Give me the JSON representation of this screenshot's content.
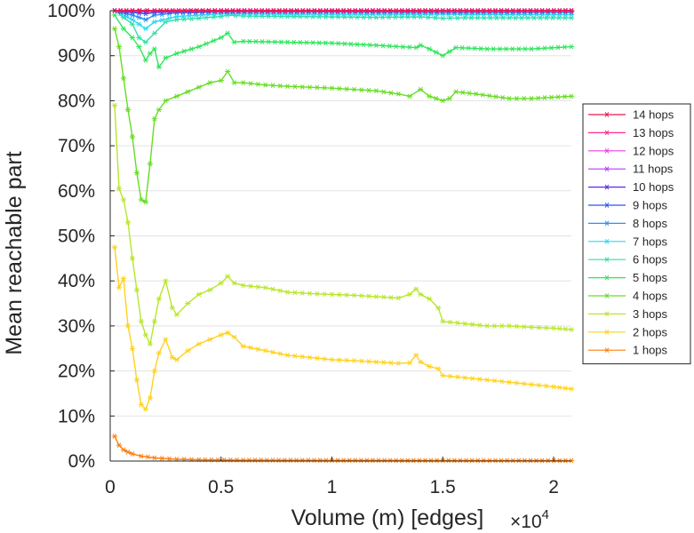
{
  "chart_data": {
    "type": "line",
    "xlabel": "Volume (m) [edges]",
    "ylabel": "Mean reachable part",
    "x_multiplier_base": "×10",
    "x_multiplier_exp": "4",
    "xlim": [
      0,
      20800
    ],
    "ylim": [
      0,
      100
    ],
    "xticks": [
      0,
      5000,
      10000,
      15000,
      20000
    ],
    "xtick_labels": [
      "0",
      "0.5",
      "1",
      "1.5",
      "2"
    ],
    "yticks": [
      0,
      10,
      20,
      30,
      40,
      50,
      60,
      70,
      80,
      90,
      100
    ],
    "ytick_labels": [
      "0%",
      "10%",
      "20%",
      "30%",
      "40%",
      "50%",
      "60%",
      "70%",
      "80%",
      "90%",
      "100%"
    ],
    "grid": "horizontal",
    "legend_position": "right",
    "marker": "asterisk",
    "series": [
      {
        "name": "14 hops",
        "color": "#e6194b",
        "x": [
          200,
          1000,
          2000,
          5000,
          10000,
          15000,
          20800
        ],
        "y": [
          100,
          100,
          100,
          100,
          100,
          100,
          100
        ]
      },
      {
        "name": "13 hops",
        "color": "#ff2a8f",
        "x": [
          200,
          1000,
          2000,
          5000,
          10000,
          15000,
          20800
        ],
        "y": [
          100,
          100,
          100,
          100,
          100,
          100,
          100
        ]
      },
      {
        "name": "12 hops",
        "color": "#f33be8",
        "x": [
          200,
          1000,
          2000,
          5000,
          10000,
          15000,
          20800
        ],
        "y": [
          100,
          100,
          100,
          100,
          100,
          100,
          100
        ]
      },
      {
        "name": "11 hops",
        "color": "#b63bff",
        "x": [
          200,
          1000,
          2000,
          5000,
          10000,
          15000,
          20800
        ],
        "y": [
          100,
          100,
          100,
          100,
          100,
          100,
          100
        ]
      },
      {
        "name": "10 hops",
        "color": "#5a2be6",
        "x": [
          200,
          1000,
          1600,
          2000,
          5000,
          10000,
          15000,
          20800
        ],
        "y": [
          100,
          99.9,
          99.8,
          99.9,
          100,
          100,
          100,
          100
        ]
      },
      {
        "name": "9 hops",
        "color": "#2b55f0",
        "x": [
          200,
          1000,
          1600,
          2000,
          3000,
          5000,
          10000,
          15000,
          20800
        ],
        "y": [
          100,
          99.6,
          99.3,
          99.6,
          99.8,
          99.9,
          99.9,
          99.9,
          99.9
        ]
      },
      {
        "name": "8 hops",
        "color": "#2f8ff0",
        "x": [
          200,
          1000,
          1600,
          2000,
          3000,
          5000,
          10000,
          15000,
          20800
        ],
        "y": [
          100,
          99.0,
          98.0,
          99.0,
          99.5,
          99.7,
          99.7,
          99.6,
          99.6
        ]
      },
      {
        "name": "7 hops",
        "color": "#2fd6f0",
        "x": [
          200,
          1000,
          1600,
          2000,
          3000,
          5000,
          10000,
          15000,
          20800
        ],
        "y": [
          100,
          98.0,
          96.0,
          97.5,
          98.7,
          99.3,
          99.2,
          99.2,
          99.1
        ]
      },
      {
        "name": "6 hops",
        "color": "#2fe0a8",
        "x": [
          200,
          600,
          1000,
          1300,
          1600,
          2000,
          2500,
          3000,
          4000,
          5000,
          5300,
          6000,
          8000,
          10000,
          12000,
          14000,
          15000,
          16000,
          18000,
          20800
        ],
        "y": [
          100,
          98.5,
          97.0,
          94.0,
          93.0,
          95.0,
          97.5,
          98.0,
          98.3,
          98.7,
          99.0,
          98.8,
          98.7,
          98.6,
          98.5,
          98.6,
          98.3,
          98.4,
          98.4,
          98.4
        ]
      },
      {
        "name": "5 hops",
        "color": "#2ee65c",
        "x": [
          200,
          600,
          1000,
          1300,
          1600,
          1800,
          2000,
          2200,
          2500,
          3000,
          4000,
          5000,
          5300,
          5600,
          6000,
          8000,
          10000,
          12000,
          13800,
          14000,
          14400,
          15000,
          15600,
          17000,
          19000,
          20800
        ],
        "y": [
          99.0,
          96.0,
          94.0,
          92.0,
          89.0,
          90.5,
          91.5,
          87.5,
          89.5,
          90.5,
          92.0,
          94.0,
          95.0,
          93.0,
          93.2,
          93.0,
          92.8,
          92.3,
          91.8,
          92.3,
          91.5,
          90.0,
          91.8,
          91.5,
          91.5,
          92.0
        ]
      },
      {
        "name": "4 hops",
        "color": "#66dd22",
        "x": [
          200,
          400,
          600,
          800,
          1000,
          1200,
          1400,
          1600,
          1800,
          2000,
          2200,
          2500,
          3000,
          3500,
          4000,
          4500,
          5000,
          5300,
          5600,
          6000,
          7000,
          8000,
          9000,
          10000,
          11000,
          12000,
          13000,
          13500,
          14000,
          14400,
          15000,
          15300,
          15600,
          16500,
          18000,
          19000,
          20800
        ],
        "y": [
          96.0,
          92.0,
          85.0,
          78.0,
          72.0,
          64.0,
          58.0,
          57.5,
          66.0,
          76.0,
          78.0,
          80.0,
          81.0,
          82.0,
          83.0,
          84.0,
          84.5,
          86.5,
          84.0,
          84.0,
          83.5,
          83.2,
          83.0,
          82.8,
          82.5,
          82.2,
          81.5,
          81.0,
          82.5,
          81.0,
          80.0,
          80.5,
          82.0,
          81.5,
          80.5,
          80.5,
          81.0
        ]
      },
      {
        "name": "3 hops",
        "color": "#b8e62b",
        "x": [
          200,
          400,
          600,
          800,
          1000,
          1200,
          1400,
          1600,
          1800,
          2000,
          2200,
          2500,
          2800,
          3000,
          3500,
          4000,
          4500,
          5000,
          5300,
          5600,
          6000,
          7000,
          8000,
          9000,
          10000,
          11000,
          12000,
          13000,
          13500,
          13800,
          14000,
          14400,
          14800,
          15000,
          16000,
          17000,
          18000,
          19000,
          20000,
          20800
        ],
        "y": [
          79.0,
          60.5,
          58.0,
          53.0,
          45.0,
          38.0,
          31.0,
          28.0,
          26.0,
          31.0,
          36.0,
          40.0,
          34.0,
          32.5,
          35.0,
          37.0,
          38.0,
          39.5,
          41.0,
          39.5,
          39.0,
          38.5,
          37.5,
          37.2,
          37.0,
          36.8,
          36.5,
          36.2,
          37.0,
          38.2,
          37.0,
          36.0,
          34.0,
          31.0,
          30.5,
          30.0,
          30.0,
          29.7,
          29.5,
          29.2
        ]
      },
      {
        "name": "2 hops",
        "color": "#ffd21a",
        "x": [
          200,
          400,
          600,
          800,
          1000,
          1200,
          1400,
          1600,
          1800,
          2000,
          2200,
          2500,
          2800,
          3000,
          3500,
          4000,
          4500,
          5000,
          5300,
          5600,
          6000,
          7000,
          8000,
          9000,
          10000,
          11000,
          12000,
          13000,
          13500,
          13800,
          14000,
          14400,
          14800,
          15000,
          16000,
          17000,
          18000,
          19000,
          20000,
          20800
        ],
        "y": [
          47.5,
          38.5,
          40.5,
          30.0,
          25.0,
          18.0,
          12.5,
          11.5,
          14.0,
          20.0,
          24.0,
          27.0,
          23.0,
          22.5,
          24.5,
          26.0,
          27.0,
          28.0,
          28.5,
          27.5,
          25.5,
          24.5,
          23.5,
          23.0,
          22.5,
          22.3,
          22.0,
          21.7,
          21.8,
          23.5,
          22.0,
          21.0,
          20.5,
          19.0,
          18.5,
          18.0,
          17.5,
          17.0,
          16.5,
          16.0
        ]
      },
      {
        "name": "1 hops",
        "color": "#ff7f0e",
        "x": [
          200,
          400,
          600,
          800,
          1000,
          1400,
          2000,
          3000,
          4000,
          6000,
          10000,
          15000,
          20800
        ],
        "y": [
          5.5,
          3.5,
          2.5,
          2.0,
          1.6,
          1.1,
          0.7,
          0.4,
          0.3,
          0.2,
          0.15,
          0.12,
          0.1
        ]
      }
    ]
  }
}
